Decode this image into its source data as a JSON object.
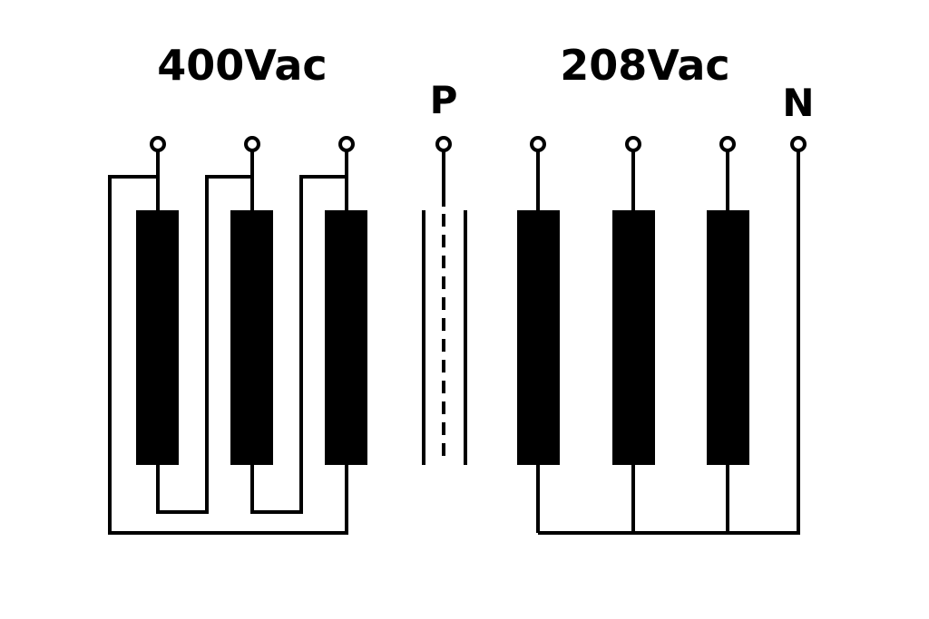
{
  "labels": {
    "primary_voltage": "400Vac",
    "secondary_voltage": "208Vac",
    "primary_terminal": "P",
    "neutral_terminal": "N"
  },
  "colors": {
    "line": "#000000",
    "background": "#ffffff"
  }
}
